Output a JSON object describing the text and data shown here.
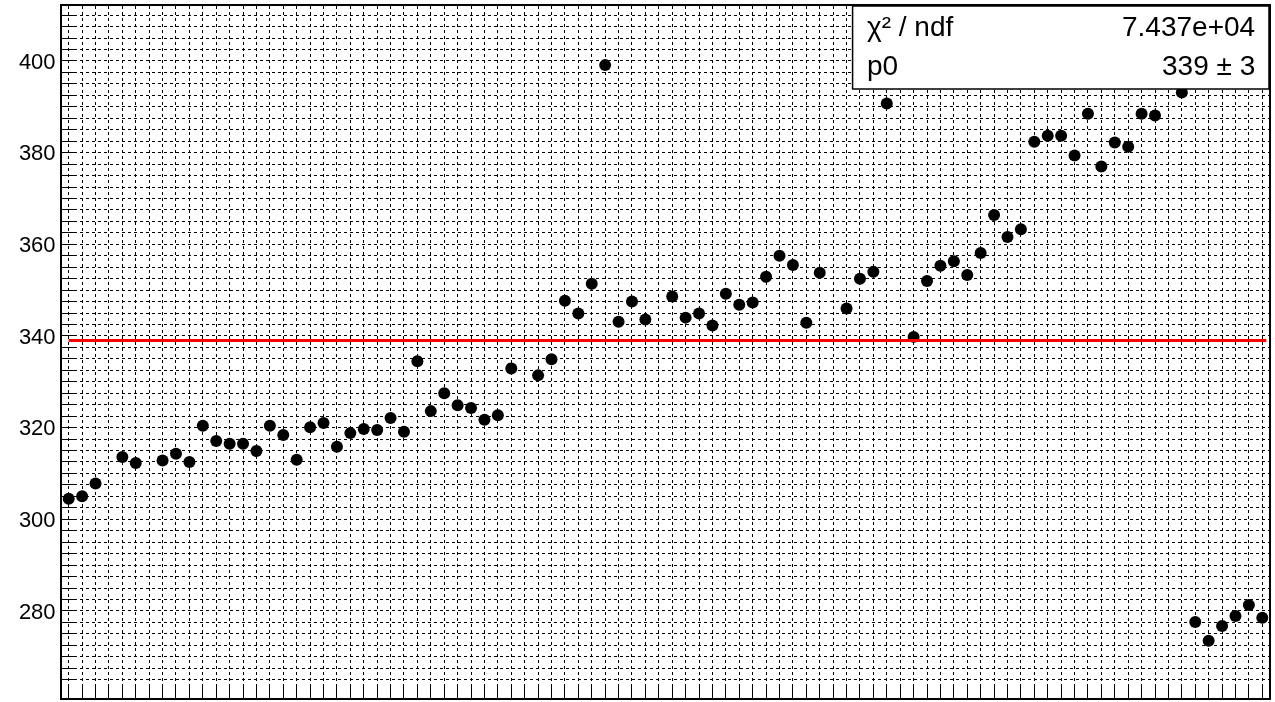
{
  "chart_data": {
    "type": "scatter",
    "categories": [
      null,
      null,
      null,
      null,
      null,
      null,
      null,
      null,
      null,
      null,
      null,
      null,
      null,
      null,
      null,
      null,
      null,
      null,
      null,
      null,
      null,
      null,
      null,
      null,
      null,
      null,
      null,
      null,
      null,
      null,
      null,
      null,
      null,
      null,
      null,
      null,
      null,
      null,
      null,
      null,
      null,
      null,
      null,
      null,
      null,
      null,
      null,
      null,
      null,
      null,
      null,
      null,
      null,
      null,
      null,
      null,
      null,
      null,
      null,
      null,
      null,
      null,
      null,
      null,
      null,
      null,
      null,
      null,
      null,
      null,
      null,
      null,
      null,
      null,
      null,
      null,
      null,
      null,
      null,
      null,
      null,
      null,
      null,
      null,
      null,
      null,
      null,
      null,
      null,
      null
    ],
    "values": [
      304.5,
      305,
      307.8,
      null,
      313.6,
      312.3,
      null,
      312.8,
      314.3,
      312.5,
      320.4,
      317.1,
      316.5,
      316.5,
      314.9,
      320.4,
      318.4,
      313,
      320.1,
      321,
      315.8,
      318.8,
      319.7,
      319.5,
      322.1,
      319.1,
      334.5,
      323.6,
      327.5,
      324.9,
      324.3,
      321.7,
      322.7,
      332.9,
      null,
      331.4,
      334.9,
      347.7,
      344.9,
      351.4,
      399.1,
      343.1,
      347.5,
      343.6,
      null,
      348.6,
      344,
      344.9,
      342.3,
      349.2,
      346.8,
      347.3,
      352.9,
      357.5,
      355.5,
      342.9,
      353.8,
      null,
      346,
      352.5,
      354,
      390.7,
      null,
      339.8,
      352,
      355.3,
      356.3,
      353.3,
      358.1,
      366.4,
      361.6,
      363.3,
      382.4,
      383.7,
      383.7,
      379.4,
      388.5,
      377,
      382.2,
      381.3,
      388.5,
      388.1,
      null,
      393.1,
      277.6,
      273.5,
      276.7,
      278.9,
      281.3,
      278.5
    ],
    "color": "#000000",
    "marker": "circle",
    "ylim": [
      261,
      412
    ],
    "yticks": [
      {
        "value": 265,
        "label": null
      },
      {
        "value": 267.5,
        "label": null
      },
      {
        "value": 270,
        "label": null
      },
      {
        "value": 272.5,
        "label": null
      },
      {
        "value": 275,
        "label": null
      },
      {
        "value": 277.5,
        "label": null
      },
      280,
      {
        "value": 282.5,
        "label": null
      },
      {
        "value": 285,
        "label": null
      },
      {
        "value": 287.5,
        "label": null
      },
      {
        "value": 290,
        "label": null
      },
      {
        "value": 292.5,
        "label": null
      },
      {
        "value": 295,
        "label": null
      },
      {
        "value": 297.5,
        "label": null
      },
      300,
      {
        "value": 302.5,
        "label": null
      },
      {
        "value": 305,
        "label": null
      },
      {
        "value": 307.5,
        "label": null
      },
      {
        "value": 310,
        "label": null
      },
      {
        "value": 312.5,
        "label": null
      },
      {
        "value": 315,
        "label": null
      },
      {
        "value": 317.5,
        "label": null
      },
      320,
      {
        "value": 322.5,
        "label": null
      },
      {
        "value": 325,
        "label": null
      },
      {
        "value": 327.5,
        "label": null
      },
      {
        "value": 330,
        "label": null
      },
      {
        "value": 332.5,
        "label": null
      },
      {
        "value": 335,
        "label": null
      },
      {
        "value": 337.5,
        "label": null
      },
      340,
      {
        "value": 342.5,
        "label": null
      },
      {
        "value": 345,
        "label": null
      },
      {
        "value": 347.5,
        "label": null
      },
      {
        "value": 350,
        "label": null
      },
      {
        "value": 352.5,
        "label": null
      },
      {
        "value": 355,
        "label": null
      },
      {
        "value": 357.5,
        "label": null
      },
      360,
      {
        "value": 362.5,
        "label": null
      },
      {
        "value": 365,
        "label": null
      },
      {
        "value": 367.5,
        "label": null
      },
      {
        "value": 370,
        "label": null
      },
      {
        "value": 372.5,
        "label": null
      },
      {
        "value": 375,
        "label": null
      },
      {
        "value": 377.5,
        "label": null
      },
      380,
      {
        "value": 382.5,
        "label": null
      },
      {
        "value": 385,
        "label": null
      },
      {
        "value": 387.5,
        "label": null
      },
      {
        "value": 390,
        "label": null
      },
      {
        "value": 392.5,
        "label": null
      },
      {
        "value": 395,
        "label": null
      },
      {
        "value": 397.5,
        "label": null
      },
      400,
      {
        "value": 402.5,
        "label": null
      },
      {
        "value": 405,
        "label": null
      },
      {
        "value": 407.5,
        "label": null
      },
      {
        "value": 410,
        "label": null
      }
    ],
    "grid": true,
    "tick_labels": "y",
    "ref_lines": [
      {
        "axis": "y",
        "value": 339,
        "color": "#ff0000"
      }
    ],
    "annotations": [
      "χ² / ndf",
      "7.437e+04",
      "p0",
      "339 ± 3"
    ]
  }
}
